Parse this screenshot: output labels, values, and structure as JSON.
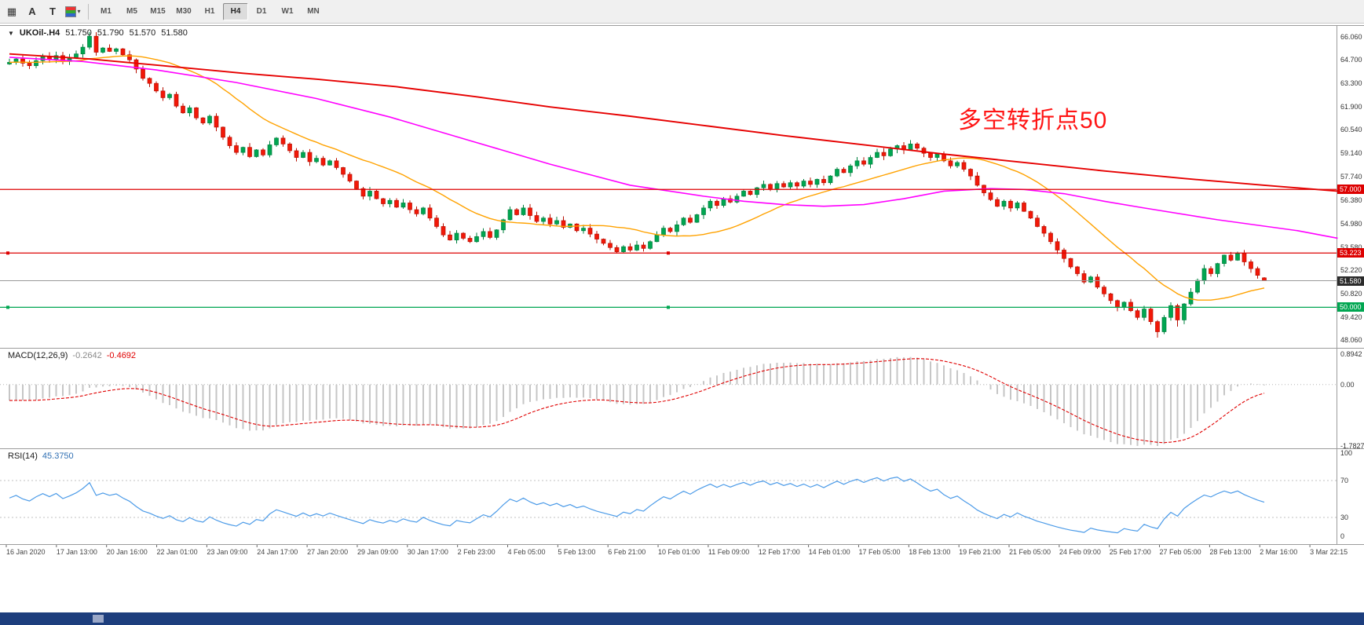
{
  "toolbar": {
    "tools": [
      {
        "name": "chart-grid-tool",
        "glyph": "▦"
      },
      {
        "name": "annotate-a-tool",
        "glyph": "A"
      },
      {
        "name": "text-t-tool",
        "glyph": "T"
      },
      {
        "name": "chart-colors-tool",
        "glyph": "",
        "swatch": true,
        "caret": "▾"
      }
    ],
    "timeframes": [
      {
        "label": "M1"
      },
      {
        "label": "M5"
      },
      {
        "label": "M15"
      },
      {
        "label": "M30"
      },
      {
        "label": "H1"
      },
      {
        "label": "H4",
        "active": true
      },
      {
        "label": "D1"
      },
      {
        "label": "W1"
      },
      {
        "label": "MN"
      }
    ]
  },
  "chart": {
    "symbol_header": {
      "collapse_glyph": "▼",
      "symbol": "UKOil-.H4",
      "open": "51.750",
      "high": "51.790",
      "low": "51.570",
      "close": "51.580"
    },
    "annotation": {
      "text": "多空转折点50",
      "color": "#ff1414"
    },
    "price_scale": [
      "66.060",
      "64.700",
      "63.300",
      "61.900",
      "60.540",
      "59.140",
      "57.740",
      "56.380",
      "54.980",
      "53.580",
      "52.220",
      "50.820",
      "49.420",
      "48.060"
    ],
    "levels": [
      {
        "price": 57.0,
        "label": "57.000",
        "color": "#dd0000",
        "handles": false
      },
      {
        "price": 53.223,
        "label": "53.223",
        "color": "#dd0000",
        "handles": true
      },
      {
        "price": 50.0,
        "label": "50.000",
        "color": "#00a651",
        "handles": true
      }
    ],
    "current_price": {
      "value": 51.58,
      "label": "51.580",
      "line_color": "#9a9a9a",
      "tag_color": "#2b2b2b"
    },
    "time_labels": [
      "16 Jan 2020",
      "17 Jan 13:00",
      "20 Jan 16:00",
      "22 Jan 01:00",
      "23 Jan 09:00",
      "24 Jan 17:00",
      "27 Jan 20:00",
      "29 Jan 09:00",
      "30 Jan 17:00",
      "2 Feb 23:00",
      "4 Feb 05:00",
      "5 Feb 13:00",
      "6 Feb 21:00",
      "10 Feb 01:00",
      "11 Feb 09:00",
      "12 Feb 17:00",
      "14 Feb 01:00",
      "17 Feb 05:00",
      "18 Feb 13:00",
      "19 Feb 21:00",
      "21 Feb 05:00",
      "24 Feb 09:00",
      "25 Feb 17:00",
      "27 Feb 05:00",
      "28 Feb 13:00",
      "2 Mar 16:00",
      "3 Mar 22:15"
    ]
  },
  "chart_data": {
    "type": "candlestick",
    "symbol": "UKOil-.H4",
    "timeframe": "H4",
    "ylim": [
      48.06,
      66.06
    ],
    "candles": {
      "closes": [
        64.55,
        64.75,
        64.5,
        64.35,
        64.65,
        64.9,
        64.7,
        64.95,
        64.6,
        64.8,
        65.05,
        65.45,
        66.1,
        65.15,
        65.4,
        65.2,
        65.35,
        65.0,
        64.7,
        64.15,
        63.6,
        63.3,
        62.85,
        62.45,
        62.65,
        61.95,
        61.55,
        61.85,
        61.25,
        60.95,
        61.35,
        60.7,
        60.1,
        59.6,
        59.2,
        59.5,
        58.95,
        59.35,
        59.05,
        59.65,
        60.05,
        59.7,
        59.3,
        58.9,
        59.2,
        58.65,
        58.85,
        58.45,
        58.7,
        58.3,
        57.9,
        57.5,
        57.05,
        56.6,
        56.9,
        56.45,
        56.15,
        56.35,
        55.95,
        56.2,
        55.8,
        55.55,
        55.9,
        55.3,
        54.8,
        54.3,
        54.0,
        54.4,
        54.1,
        53.9,
        54.2,
        54.5,
        54.15,
        54.6,
        55.2,
        55.8,
        55.5,
        55.9,
        55.45,
        55.1,
        55.3,
        54.95,
        55.15,
        54.75,
        54.95,
        54.55,
        54.7,
        54.35,
        54.05,
        53.8,
        53.55,
        53.3,
        53.6,
        53.4,
        53.7,
        53.5,
        53.9,
        54.3,
        54.7,
        54.5,
        54.9,
        55.3,
        55.05,
        55.5,
        55.9,
        56.3,
        56.05,
        56.45,
        56.25,
        56.6,
        56.9,
        56.7,
        57.1,
        57.3,
        57.05,
        57.35,
        57.15,
        57.4,
        57.2,
        57.5,
        57.3,
        57.6,
        57.4,
        57.8,
        58.2,
        58.0,
        58.4,
        58.7,
        58.5,
        58.9,
        59.2,
        59.0,
        59.4,
        59.6,
        59.35,
        59.7,
        59.45,
        59.15,
        58.9,
        59.1,
        58.7,
        58.4,
        58.6,
        58.2,
        57.8,
        57.25,
        56.8,
        56.4,
        56.0,
        56.3,
        55.9,
        56.2,
        55.7,
        55.3,
        54.8,
        54.4,
        53.9,
        53.4,
        52.9,
        52.4,
        52.0,
        51.5,
        51.8,
        51.2,
        50.8,
        50.4,
        50.0,
        50.3,
        49.8,
        49.4,
        49.9,
        49.15,
        48.55,
        49.4,
        50.1,
        49.25,
        50.2,
        50.9,
        51.6,
        52.3,
        52.0,
        52.6,
        53.1,
        52.8,
        53.2,
        52.7,
        52.3,
        51.9,
        51.58
      ],
      "last_ohlc": [
        51.75,
        51.79,
        51.57,
        51.58
      ],
      "overrides": {
        "12": {
          "high": 66.35
        },
        "172": {
          "low": 48.2
        },
        "175": {
          "low": 48.85
        }
      },
      "up_color": "#00a651",
      "down_color": "#f21808"
    },
    "overlays": {
      "ma_fast": {
        "type": "sma",
        "period": 20,
        "color": "#ffa200"
      },
      "ma_mid": {
        "color": "#ff00ff",
        "waypoints": [
          [
            0,
            64.85
          ],
          [
            11,
            64.6
          ],
          [
            22,
            64.1
          ],
          [
            34,
            63.35
          ],
          [
            46,
            62.4
          ],
          [
            57,
            61.3
          ],
          [
            69,
            59.9
          ],
          [
            81,
            58.5
          ],
          [
            93,
            57.25
          ],
          [
            104,
            56.6
          ],
          [
            110,
            56.3
          ],
          [
            116,
            56.1
          ],
          [
            122,
            56.0
          ],
          [
            128,
            56.1
          ],
          [
            134,
            56.45
          ],
          [
            140,
            56.9
          ],
          [
            147,
            57.05
          ],
          [
            152,
            57.0
          ],
          [
            158,
            56.75
          ],
          [
            164,
            56.3
          ],
          [
            170,
            55.9
          ],
          [
            181,
            55.2
          ],
          [
            193,
            54.55
          ],
          [
            199,
            54.1
          ]
        ]
      },
      "ma_slow": {
        "color": "#e60000",
        "waypoints": [
          [
            0,
            65.05
          ],
          [
            12,
            64.75
          ],
          [
            23,
            64.35
          ],
          [
            35,
            63.9
          ],
          [
            46,
            63.55
          ],
          [
            58,
            63.1
          ],
          [
            70,
            62.5
          ],
          [
            81,
            61.9
          ],
          [
            93,
            61.35
          ],
          [
            105,
            60.75
          ],
          [
            116,
            60.2
          ],
          [
            128,
            59.65
          ],
          [
            140,
            59.1
          ],
          [
            152,
            58.6
          ],
          [
            164,
            58.1
          ],
          [
            176,
            57.65
          ],
          [
            188,
            57.25
          ],
          [
            199,
            56.9
          ]
        ]
      }
    },
    "macd": {
      "label": "MACD(12,26,9)",
      "value_main": "-0.2642",
      "value_signal": "-0.4692",
      "fast": 12,
      "slow": 26,
      "signal": 9,
      "scale_labels": [
        "0.8942",
        "0.00",
        "-1.7827"
      ],
      "range": [
        -1.7827,
        0.8942
      ],
      "hist_color": "#c6c6c6",
      "signal_color": "#e00000"
    },
    "rsi": {
      "label": "RSI(14)",
      "value": "45.3750",
      "period": 14,
      "scale_labels": [
        "100",
        "70",
        "30",
        "0"
      ],
      "levels": [
        70,
        30
      ],
      "range": [
        0,
        100
      ],
      "color": "#4c9be8"
    }
  }
}
